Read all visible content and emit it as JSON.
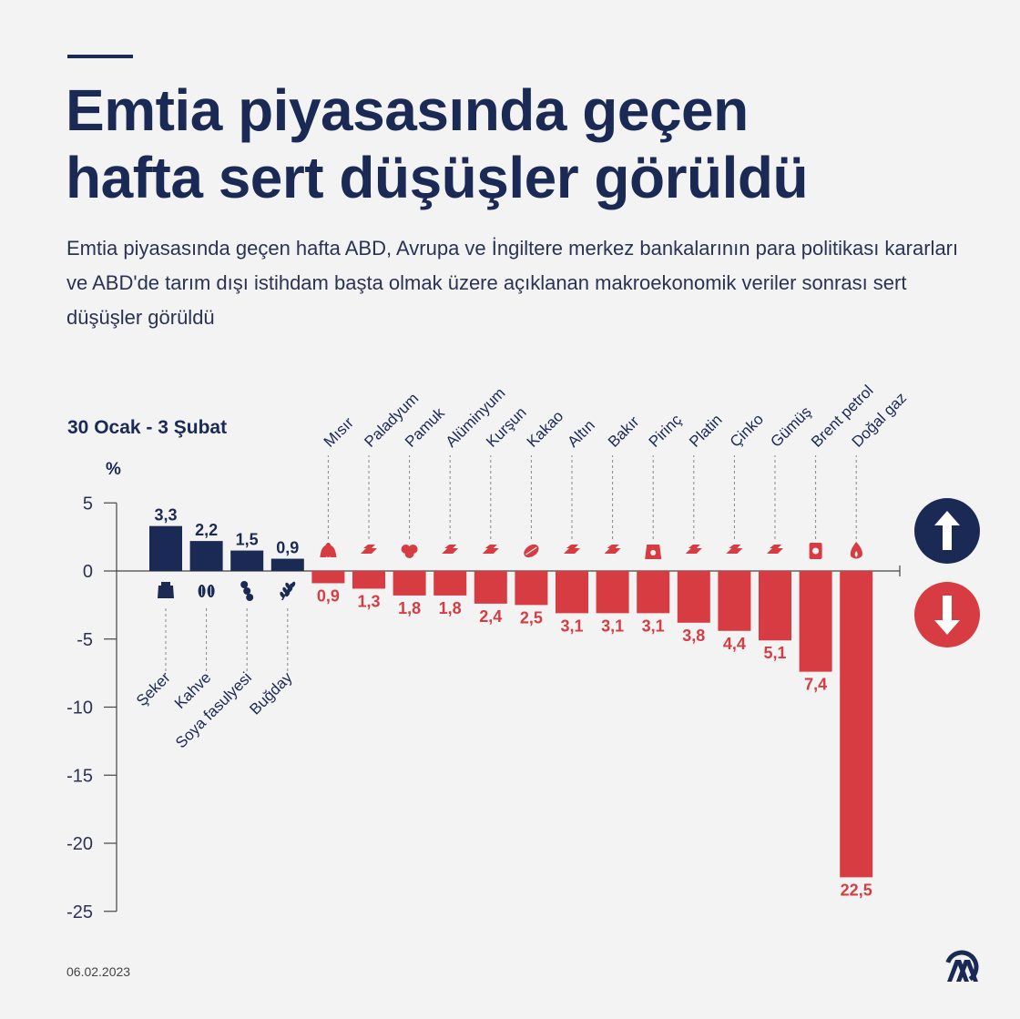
{
  "header": {
    "title_line1": "Emtia piyasasında geçen",
    "title_line2": "hafta sert düşüşler görüldü",
    "subtitle": "Emtia piyasasında geçen hafta ABD, Avrupa ve İngiltere merkez bankalarının para politikası kararları ve ABD'de tarım dışı istihdam başta olmak üzere açıklanan makroekonomik veriler sonrası sert düşüşler görüldü"
  },
  "footer": {
    "date": "06.02.2023",
    "logo_text": "AA"
  },
  "colors": {
    "navy": "#1a2a55",
    "red": "#d63c42",
    "background": "#f3f3f3"
  },
  "chart_data": {
    "type": "bar",
    "period_label": "30 Ocak - 3 Şubat",
    "unit_label": "%",
    "ylim": [
      -25,
      5
    ],
    "yticks": [
      5,
      0,
      -5,
      -10,
      -15,
      -20,
      -25
    ],
    "categories": [
      "Şeker",
      "Kahve",
      "Soya fasulyesi",
      "Buğday",
      "Mısır",
      "Paladyum",
      "Pamuk",
      "Alüminyum",
      "Kurşun",
      "Kakao",
      "Altın",
      "Bakır",
      "Pirinç",
      "Platin",
      "Çinko",
      "Gümüş",
      "Brent petrol",
      "Doğal gaz"
    ],
    "values": [
      3.3,
      2.2,
      1.5,
      0.9,
      -0.9,
      -1.3,
      -1.8,
      -1.8,
      -2.4,
      -2.5,
      -3.1,
      -3.1,
      -3.1,
      -3.8,
      -4.4,
      -5.1,
      -7.4,
      -22.5
    ],
    "labels": [
      "3,3",
      "2,2",
      "1,5",
      "0,9",
      "0,9",
      "1,3",
      "1,8",
      "1,8",
      "2,4",
      "2,5",
      "3,1",
      "3,1",
      "3,1",
      "3,8",
      "4,4",
      "5,1",
      "7,4",
      "22,5"
    ],
    "icons": [
      "sugar-icon",
      "coffee-icon",
      "soybean-icon",
      "wheat-icon",
      "corn-icon",
      "metal-bars-icon",
      "cotton-icon",
      "metal-bars-icon",
      "metal-bars-icon",
      "cocoa-icon",
      "metal-bars-icon",
      "metal-bars-icon",
      "rice-sack-icon",
      "metal-bars-icon",
      "metal-bars-icon",
      "metal-bars-icon",
      "oil-barrel-icon",
      "gas-flame-icon"
    ],
    "legend_up_icon": "arrow-up-icon",
    "legend_down_icon": "arrow-down-icon",
    "grid": false
  }
}
